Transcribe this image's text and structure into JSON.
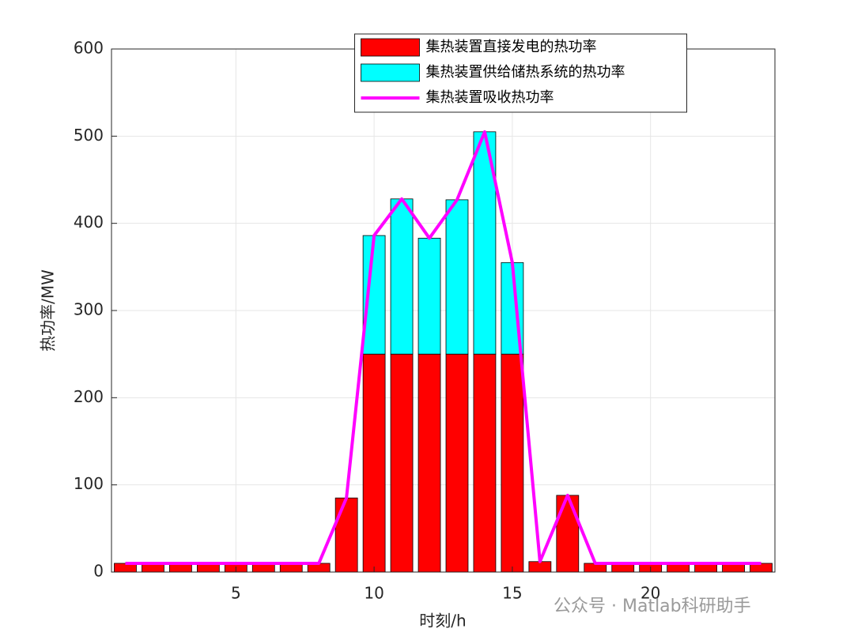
{
  "chart_data": {
    "type": "bar",
    "xlabel": "时刻/h",
    "ylabel": "热功率/MW",
    "x": [
      1,
      2,
      3,
      4,
      5,
      6,
      7,
      8,
      9,
      10,
      11,
      12,
      13,
      14,
      15,
      16,
      17,
      18,
      19,
      20,
      21,
      22,
      23,
      24
    ],
    "stacked": true,
    "series": [
      {
        "name": "集热装置直接发电的热功率",
        "type": "bar",
        "color": "#ff0000",
        "values": [
          10,
          10,
          10,
          10,
          10,
          10,
          10,
          10,
          85,
          250,
          250,
          250,
          250,
          250,
          250,
          12,
          88,
          10,
          10,
          10,
          10,
          10,
          10,
          10
        ]
      },
      {
        "name": "集热装置供给储热系统的热功率",
        "type": "bar",
        "color": "#00ffff",
        "values": [
          0,
          0,
          0,
          0,
          0,
          0,
          0,
          0,
          0,
          136,
          178,
          133,
          177,
          255,
          105,
          0,
          0,
          0,
          0,
          0,
          0,
          0,
          0,
          0
        ]
      },
      {
        "name": "集热装置吸收热功率",
        "type": "line",
        "color": "#ff00ff",
        "values": [
          10,
          10,
          10,
          10,
          10,
          10,
          10,
          10,
          85,
          386,
          428,
          383,
          427,
          505,
          355,
          12,
          88,
          10,
          10,
          10,
          10,
          10,
          10,
          10
        ]
      }
    ],
    "xlim": [
      0.5,
      24.5
    ],
    "xticks": [
      5,
      10,
      15,
      20
    ],
    "ylim": [
      0,
      600
    ],
    "yticks": [
      0,
      100,
      200,
      300,
      400,
      500,
      600
    ],
    "grid": true,
    "legend": "north",
    "watermark": "公众号 · Matlab科研助手"
  }
}
